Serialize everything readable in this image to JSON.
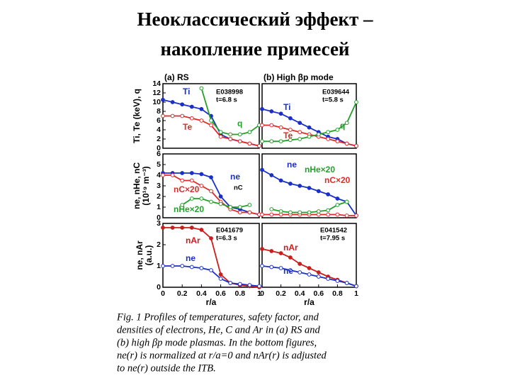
{
  "title": [
    "Неоклассический эффект –",
    "накопление примесей"
  ],
  "chart_data": [
    {
      "type": "line",
      "title": "(a) RS",
      "annotations": [
        "E038998",
        "t=6.8 s"
      ],
      "ylabel": [
        "Ti, Te (keV), q"
      ],
      "x": [
        0,
        0.1,
        0.2,
        0.3,
        0.4,
        0.5,
        0.6,
        0.7,
        0.8,
        0.9,
        1
      ],
      "xlim": [
        0,
        1
      ],
      "ylim": [
        0,
        14
      ],
      "yticks": [
        0,
        2,
        4,
        6,
        8,
        10,
        12,
        14
      ],
      "series": [
        {
          "name": "Ti",
          "color": "#1a2fc8",
          "values": [
            10.5,
            10,
            9.5,
            9,
            8.5,
            7,
            3,
            2,
            1.5,
            1,
            0.5
          ]
        },
        {
          "name": "Te",
          "color": "#e02a2a",
          "values": [
            7,
            7,
            7,
            6.5,
            6,
            5,
            2.5,
            2,
            1.5,
            1,
            0.5
          ]
        },
        {
          "name": "q",
          "color": "#22a02a",
          "values": [
            null,
            null,
            null,
            null,
            13,
            6,
            3.5,
            3,
            3,
            3.5,
            5
          ]
        }
      ]
    },
    {
      "type": "line",
      "title": "(b) High βp mode",
      "annotations": [
        "E039644",
        "t=5.8 s"
      ],
      "x": [
        0,
        0.1,
        0.2,
        0.3,
        0.4,
        0.5,
        0.6,
        0.7,
        0.8,
        0.9,
        1
      ],
      "xlim": [
        0,
        1
      ],
      "ylim": [
        0,
        14
      ],
      "series": [
        {
          "name": "Ti",
          "color": "#1a2fc8",
          "values": [
            8.5,
            8,
            7.5,
            6.5,
            5.5,
            4.5,
            3.5,
            2.5,
            2,
            1,
            0.5
          ]
        },
        {
          "name": "Te",
          "color": "#e02a2a",
          "values": [
            5,
            5,
            4.5,
            4,
            3.5,
            3,
            2.5,
            2,
            1.5,
            1,
            0.5
          ]
        },
        {
          "name": "q",
          "color": "#22a02a",
          "values": [
            1.5,
            1.5,
            1.5,
            1.8,
            2,
            2.5,
            3,
            3.5,
            4,
            5.5,
            10
          ]
        }
      ]
    },
    {
      "type": "line",
      "annotations": [
        "nC"
      ],
      "ylabel": [
        "ne, nHe, nC",
        "(10¹⁹ m⁻³)"
      ],
      "x": [
        0,
        0.1,
        0.2,
        0.3,
        0.4,
        0.5,
        0.6,
        0.7,
        0.8,
        0.9,
        1
      ],
      "xlim": [
        0,
        1
      ],
      "ylim": [
        0,
        6
      ],
      "yticks": [
        0,
        1,
        2,
        3,
        4,
        5,
        6
      ],
      "series": [
        {
          "name": "ne",
          "color": "#1a2fc8",
          "values": [
            4.2,
            4.2,
            4.2,
            4.2,
            4.1,
            3.8,
            2,
            1,
            0.8,
            0.5,
            0.3
          ]
        },
        {
          "name": "nC×20",
          "color": "#e02a2a",
          "values": [
            4,
            4,
            3.5,
            3.5,
            3,
            2.5,
            1.5,
            0.8,
            0.5,
            0.5,
            0.3
          ]
        },
        {
          "name": "nHe×20",
          "color": "#22a02a",
          "values": [
            null,
            null,
            1.2,
            1.8,
            1.8,
            1.5,
            1.3,
            1,
            1,
            1.2,
            null
          ]
        }
      ]
    },
    {
      "type": "line",
      "x": [
        0,
        0.1,
        0.2,
        0.3,
        0.4,
        0.5,
        0.6,
        0.7,
        0.8,
        0.9,
        1
      ],
      "xlim": [
        0,
        1
      ],
      "ylim": [
        0,
        6
      ],
      "series": [
        {
          "name": "ne",
          "color": "#1a2fc8",
          "values": [
            4.5,
            4,
            3.5,
            3.2,
            3,
            2.8,
            2.5,
            2.2,
            1.8,
            1.5,
            0.2
          ]
        },
        {
          "name": "nC×20",
          "color": "#e02a2a",
          "values": [
            0.3,
            0.3,
            0.3,
            0.3,
            0.3,
            0.3,
            0.3,
            0.3,
            0.3,
            0.2,
            0.2
          ]
        },
        {
          "name": "nHe×20",
          "color": "#22a02a",
          "values": [
            null,
            0.8,
            0.6,
            0.5,
            0.5,
            0.5,
            0.6,
            0.7,
            1.2,
            1.5,
            null
          ]
        }
      ]
    },
    {
      "type": "line",
      "annotations": [
        "E041679",
        "t=6.3 s"
      ],
      "ylabel": [
        "ne, nAr",
        "(a.u.)"
      ],
      "xlabel": "r/a",
      "x": [
        0,
        0.1,
        0.2,
        0.3,
        0.4,
        0.5,
        0.6,
        0.7,
        0.8,
        0.9,
        1
      ],
      "xlim": [
        0,
        1
      ],
      "ylim": [
        0,
        3
      ],
      "yticks": [
        0,
        1,
        2,
        3
      ],
      "xticks": [
        0,
        0.2,
        0.4,
        0.6,
        0.8,
        1
      ],
      "series": [
        {
          "name": "nAr",
          "color": "#c81e1e",
          "values": [
            2.8,
            2.8,
            2.8,
            2.8,
            2.7,
            2.3,
            0.6,
            0.2,
            0.1,
            0.05,
            0
          ]
        },
        {
          "name": "ne",
          "color": "#1a2fc8",
          "values": [
            1,
            1,
            1,
            0.95,
            0.9,
            0.8,
            0.4,
            0.2,
            0.15,
            0.1,
            0.05
          ]
        }
      ]
    },
    {
      "type": "line",
      "annotations": [
        "E041542",
        "t=7.95 s"
      ],
      "xlabel": "r/a",
      "x": [
        0,
        0.1,
        0.2,
        0.3,
        0.4,
        0.5,
        0.6,
        0.7,
        0.8,
        0.9,
        1
      ],
      "xlim": [
        0,
        1
      ],
      "ylim": [
        0,
        3
      ],
      "xticks": [
        0,
        0.2,
        0.4,
        0.6,
        0.8,
        1
      ],
      "series": [
        {
          "name": "nAr",
          "color": "#c81e1e",
          "values": [
            1.8,
            1.7,
            1.6,
            1.4,
            1.1,
            0.9,
            0.7,
            0.5,
            0.35,
            0.2,
            0.05
          ]
        },
        {
          "name": "ne",
          "color": "#1a2fc8",
          "values": [
            1,
            0.95,
            0.9,
            0.8,
            0.7,
            0.6,
            0.5,
            0.4,
            0.3,
            0.2,
            0.05
          ]
        }
      ]
    }
  ],
  "caption": [
    "Fig. 1 Profiles of temperatures, safety factor, and",
    "densities of electrons, He, C and Ar in (a) RS and",
    "(b) high βp mode plasmas. In the bottom figures,",
    "ne(r) is normalized at r/a=0 and nAr(r) is adjusted",
    "to ne(r) outside the ITB."
  ]
}
